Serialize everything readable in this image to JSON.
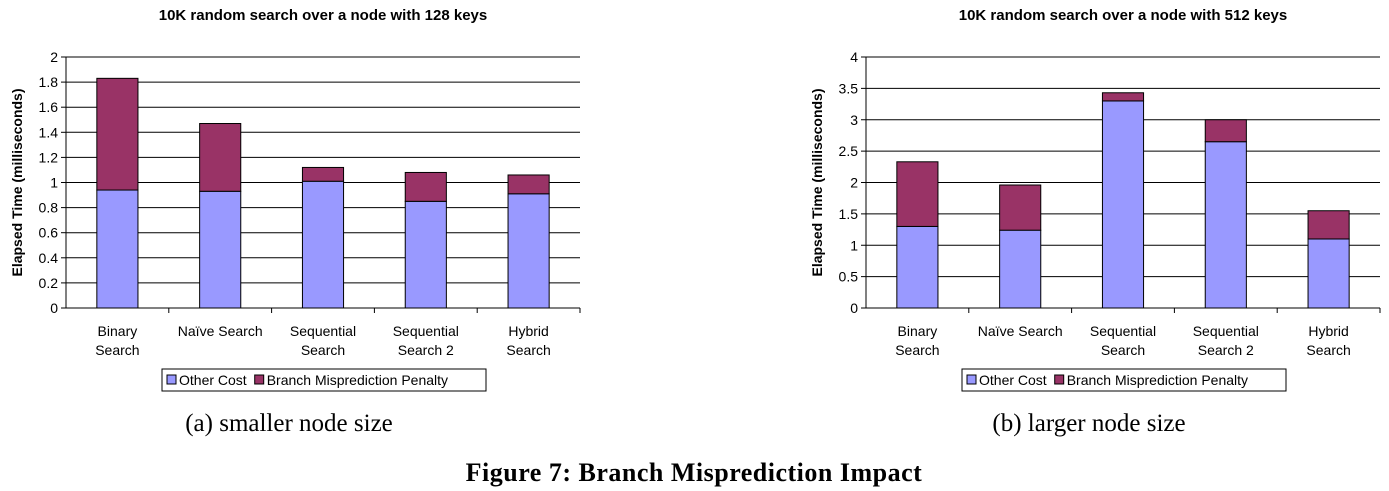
{
  "figure": {
    "caption": "Figure 7: Branch Misprediction Impact"
  },
  "colors": {
    "other_cost": "#9999ff",
    "branch_penalty": "#993366",
    "grid": "#000000"
  },
  "chart_data": [
    {
      "type": "bar",
      "stacked": true,
      "title": "10K random search over a node with 128 keys",
      "subcaption": "(a) smaller node size",
      "ylabel": "Elapsed Time (milliseconds)",
      "xlabel": "",
      "ylim": [
        0,
        2
      ],
      "yticks": [
        "0",
        "0.2",
        "0.4",
        "0.6",
        "0.8",
        "1",
        "1.2",
        "1.4",
        "1.6",
        "1.8",
        "2"
      ],
      "categories": [
        [
          "Binary",
          "Search"
        ],
        [
          "Naïve Search"
        ],
        [
          "Sequential",
          "Search"
        ],
        [
          "Sequential",
          "Search 2"
        ],
        [
          "Hybrid",
          "Search"
        ]
      ],
      "series": [
        {
          "name": "Other Cost",
          "color": "#9999ff",
          "values": [
            0.94,
            0.93,
            1.01,
            0.85,
            0.91
          ]
        },
        {
          "name": "Branch Misprediction Penalty",
          "color": "#993366",
          "values": [
            0.89,
            0.54,
            0.11,
            0.23,
            0.15
          ]
        }
      ],
      "grid": true,
      "legend": "bottom"
    },
    {
      "type": "bar",
      "stacked": true,
      "title": "10K random search over a node with 512 keys",
      "subcaption": "(b) larger node size",
      "ylabel": "Elapsed Time (milliseconds)",
      "xlabel": "",
      "ylim": [
        0,
        4
      ],
      "yticks": [
        "0",
        "0.5",
        "1",
        "1.5",
        "2",
        "2.5",
        "3",
        "3.5",
        "4"
      ],
      "categories": [
        [
          "Binary",
          "Search"
        ],
        [
          "Naïve Search"
        ],
        [
          "Sequential",
          "Search"
        ],
        [
          "Sequential",
          "Search 2"
        ],
        [
          "Hybrid",
          "Search"
        ]
      ],
      "series": [
        {
          "name": "Other Cost",
          "color": "#9999ff",
          "values": [
            1.3,
            1.24,
            3.3,
            2.65,
            1.1
          ]
        },
        {
          "name": "Branch Misprediction Penalty",
          "color": "#993366",
          "values": [
            1.03,
            0.72,
            0.13,
            0.35,
            0.45
          ]
        }
      ],
      "grid": true,
      "legend": "bottom"
    }
  ]
}
